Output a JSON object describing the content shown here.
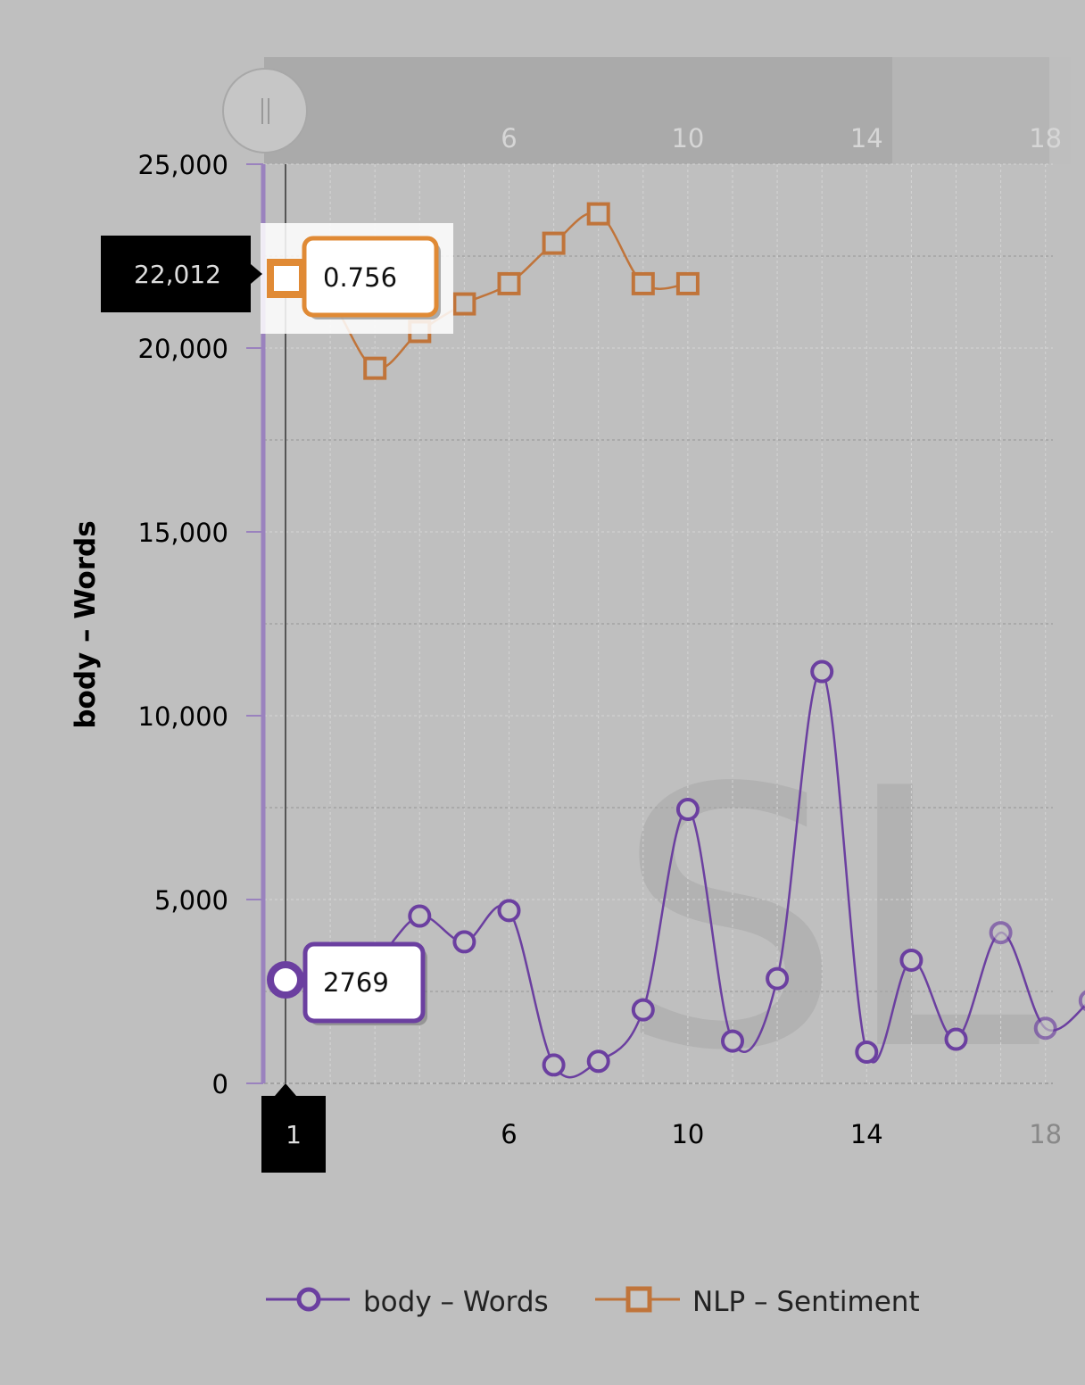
{
  "chart_data": {
    "type": "line",
    "ylabel": "body – Words",
    "ylim": [
      0,
      25000
    ],
    "yticks": [
      "0",
      "5,000",
      "10,000",
      "15,000",
      "20,000",
      "25,000"
    ],
    "xlim": [
      1,
      19
    ],
    "xticks": [
      1,
      6,
      10,
      14,
      18
    ],
    "navigator_ticks": [
      6,
      10,
      14,
      18
    ],
    "series": [
      {
        "name": "body – Words",
        "color": "#6b3fa0",
        "marker": "circle",
        "x": [
          1,
          2,
          3,
          4,
          5,
          6,
          7,
          8,
          9,
          10,
          11,
          12,
          13,
          14,
          15,
          16,
          17,
          18,
          19
        ],
        "values": [
          2769,
          3050,
          3350,
          4550,
          3850,
          4700,
          500,
          600,
          2000,
          7450,
          1150,
          2850,
          11200,
          850,
          3350,
          1200,
          4100,
          1500,
          2250
        ]
      },
      {
        "name": "NLP – Sentiment",
        "color": "#c0743a",
        "marker": "square",
        "x": [
          1,
          2,
          3,
          4,
          5,
          6,
          7,
          8,
          9,
          10
        ],
        "values": [
          22012,
          21300,
          19450,
          20450,
          21200,
          21750,
          22850,
          23650,
          21750,
          21750
        ]
      }
    ],
    "legend": {
      "position": "bottom-center"
    },
    "crosshair": {
      "x_label": "1",
      "y_label": "22,012",
      "tooltips": [
        {
          "series": "NLP – Sentiment",
          "text": "0.756"
        },
        {
          "series": "body – Words",
          "text": "2769"
        }
      ]
    },
    "watermark": "SL"
  }
}
